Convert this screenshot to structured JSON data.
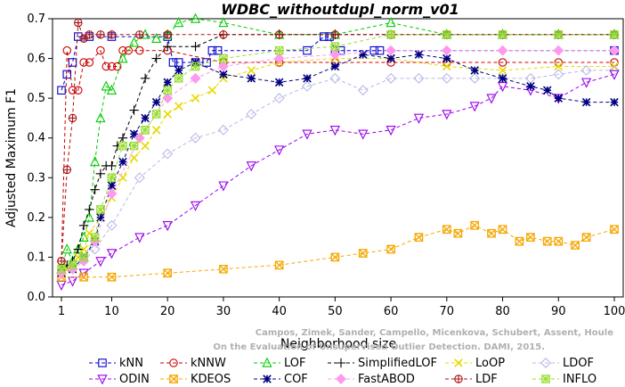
{
  "chart_data": {
    "type": "line",
    "title": "WDBC_withoutdupl_norm_v01",
    "xlabel": "Neighborhood size",
    "ylabel": "Adjusted Maximum F1",
    "xlim": [
      0,
      100
    ],
    "ylim": [
      0,
      0.7
    ],
    "xticks": [
      "1",
      "10",
      "20",
      "30",
      "40",
      "50",
      "60",
      "70",
      "80",
      "90",
      "100"
    ],
    "yticks": [
      "0.0",
      "0.1",
      "0.2",
      "0.3",
      "0.4",
      "0.5",
      "0.6",
      "0.7"
    ],
    "grid": false,
    "legend_position": "bottom",
    "watermark": "Campos, Zimek, Sander, Campello, Micenkova, Schubert, Assent, Houle\nOn the Evaluation of Unsupervised Outlier Detection. DAMI, 2015.",
    "series": [
      {
        "name": "kNN",
        "color": "#0000cc",
        "marker": "square",
        "x": [
          1,
          2,
          3,
          4,
          6,
          10,
          20,
          21,
          22,
          25,
          27,
          28,
          29,
          45,
          48,
          49,
          50,
          51,
          57,
          58,
          100
        ],
        "y": [
          0.52,
          0.56,
          0.59,
          0.655,
          0.655,
          0.655,
          0.655,
          0.59,
          0.59,
          0.59,
          0.59,
          0.62,
          0.62,
          0.62,
          0.655,
          0.655,
          0.62,
          0.62,
          0.62,
          0.62,
          0.62
        ]
      },
      {
        "name": "kNNW",
        "color": "#cc0000",
        "marker": "circle",
        "x": [
          1,
          2,
          3,
          4,
          5,
          6,
          8,
          9,
          10,
          11,
          12,
          13,
          15,
          20,
          30,
          40,
          50,
          60,
          70,
          80,
          90,
          100
        ],
        "y": [
          0.09,
          0.62,
          0.52,
          0.52,
          0.59,
          0.59,
          0.62,
          0.58,
          0.58,
          0.58,
          0.62,
          0.62,
          0.62,
          0.62,
          0.59,
          0.59,
          0.59,
          0.59,
          0.59,
          0.59,
          0.59,
          0.59
        ]
      },
      {
        "name": "LOF",
        "color": "#00cc00",
        "marker": "triangle-up",
        "x": [
          1,
          2,
          3,
          4,
          5,
          6,
          7,
          8,
          9,
          10,
          12,
          14,
          16,
          18,
          20,
          22,
          25,
          30,
          40,
          50,
          60,
          70,
          80,
          90,
          100
        ],
        "y": [
          0.07,
          0.12,
          0.09,
          0.12,
          0.15,
          0.2,
          0.34,
          0.45,
          0.53,
          0.52,
          0.6,
          0.64,
          0.66,
          0.65,
          0.66,
          0.69,
          0.7,
          0.69,
          0.66,
          0.66,
          0.69,
          0.66,
          0.66,
          0.66,
          0.66
        ]
      },
      {
        "name": "SimplifiedLOF",
        "color": "#000000",
        "marker": "plus",
        "x": [
          1,
          2,
          3,
          4,
          5,
          6,
          7,
          8,
          9,
          10,
          11,
          12,
          14,
          16,
          18,
          20,
          25,
          30,
          40,
          50,
          60,
          70,
          80,
          90,
          100
        ],
        "y": [
          0.06,
          0.08,
          0.09,
          0.12,
          0.18,
          0.22,
          0.27,
          0.31,
          0.33,
          0.33,
          0.38,
          0.4,
          0.47,
          0.55,
          0.6,
          0.63,
          0.63,
          0.66,
          0.66,
          0.66,
          0.66,
          0.66,
          0.66,
          0.66,
          0.66
        ]
      },
      {
        "name": "LoOP",
        "color": "#e8d800",
        "marker": "x",
        "x": [
          1,
          2,
          3,
          4,
          5,
          6,
          8,
          10,
          12,
          14,
          16,
          18,
          20,
          22,
          25,
          28,
          30,
          35,
          40,
          50,
          60,
          70,
          80,
          90,
          100
        ],
        "y": [
          0.06,
          0.07,
          0.08,
          0.1,
          0.12,
          0.16,
          0.2,
          0.25,
          0.3,
          0.35,
          0.38,
          0.42,
          0.46,
          0.48,
          0.5,
          0.52,
          0.55,
          0.57,
          0.59,
          0.6,
          0.6,
          0.58,
          0.57,
          0.58,
          0.58
        ]
      },
      {
        "name": "LDOF",
        "color": "#b8b8e8",
        "marker": "diamond",
        "x": [
          1,
          3,
          5,
          7,
          10,
          15,
          20,
          25,
          30,
          35,
          40,
          45,
          50,
          55,
          60,
          65,
          70,
          75,
          80,
          85,
          90,
          95,
          100
        ],
        "y": [
          0.06,
          0.07,
          0.09,
          0.12,
          0.18,
          0.3,
          0.36,
          0.4,
          0.42,
          0.46,
          0.5,
          0.53,
          0.55,
          0.52,
          0.55,
          0.55,
          0.55,
          0.55,
          0.55,
          0.55,
          0.56,
          0.57,
          0.57
        ]
      },
      {
        "name": "ODIN",
        "color": "#9900ee",
        "marker": "triangle-down",
        "x": [
          1,
          3,
          5,
          8,
          10,
          15,
          20,
          25,
          30,
          35,
          40,
          45,
          50,
          55,
          60,
          65,
          70,
          75,
          78,
          80,
          85,
          90,
          95,
          100
        ],
        "y": [
          0.03,
          0.04,
          0.06,
          0.09,
          0.11,
          0.15,
          0.18,
          0.23,
          0.28,
          0.33,
          0.37,
          0.41,
          0.42,
          0.41,
          0.42,
          0.45,
          0.46,
          0.48,
          0.5,
          0.53,
          0.52,
          0.5,
          0.54,
          0.56
        ]
      },
      {
        "name": "KDEOS",
        "color": "#f5a800",
        "marker": "square-x",
        "x": [
          1,
          5,
          10,
          20,
          30,
          40,
          50,
          55,
          60,
          65,
          70,
          72,
          75,
          78,
          80,
          83,
          85,
          88,
          90,
          93,
          95,
          100
        ],
        "y": [
          0.05,
          0.05,
          0.05,
          0.06,
          0.07,
          0.08,
          0.1,
          0.11,
          0.12,
          0.15,
          0.17,
          0.16,
          0.18,
          0.16,
          0.17,
          0.14,
          0.15,
          0.14,
          0.14,
          0.13,
          0.15,
          0.17
        ]
      },
      {
        "name": "COF",
        "color": "#000080",
        "marker": "star",
        "x": [
          1,
          3,
          5,
          7,
          8,
          10,
          12,
          14,
          16,
          18,
          20,
          22,
          25,
          30,
          35,
          40,
          45,
          50,
          55,
          60,
          65,
          70,
          75,
          80,
          85,
          88,
          90,
          95,
          100
        ],
        "y": [
          0.06,
          0.07,
          0.1,
          0.14,
          0.2,
          0.28,
          0.34,
          0.41,
          0.45,
          0.49,
          0.54,
          0.57,
          0.59,
          0.56,
          0.55,
          0.54,
          0.55,
          0.58,
          0.61,
          0.6,
          0.61,
          0.6,
          0.57,
          0.55,
          0.53,
          0.52,
          0.5,
          0.49,
          0.49
        ]
      },
      {
        "name": "FastABOD",
        "color": "#ff99ee",
        "marker": "diamond-filled",
        "x": [
          1,
          3,
          5,
          7,
          10,
          15,
          20,
          25,
          30,
          40,
          50,
          60,
          70,
          80,
          90,
          100
        ],
        "y": [
          0.06,
          0.07,
          0.09,
          0.14,
          0.26,
          0.4,
          0.5,
          0.55,
          0.58,
          0.6,
          0.61,
          0.62,
          0.62,
          0.62,
          0.62,
          0.62
        ]
      },
      {
        "name": "LDF",
        "color": "#aa1111",
        "marker": "circle-plus",
        "x": [
          1,
          2,
          3,
          4,
          5,
          6,
          8,
          10,
          15,
          20,
          30,
          40,
          50,
          60,
          70,
          80,
          90,
          100
        ],
        "y": [
          0.09,
          0.32,
          0.45,
          0.69,
          0.65,
          0.66,
          0.66,
          0.66,
          0.66,
          0.66,
          0.66,
          0.66,
          0.66,
          0.66,
          0.66,
          0.66,
          0.66,
          0.66
        ]
      },
      {
        "name": "INFLO",
        "color": "#99dd33",
        "marker": "square-star",
        "x": [
          1,
          3,
          5,
          7,
          8,
          10,
          12,
          14,
          16,
          18,
          20,
          22,
          25,
          30,
          40,
          50,
          60,
          70,
          80,
          90,
          100
        ],
        "y": [
          0.07,
          0.08,
          0.1,
          0.15,
          0.22,
          0.3,
          0.38,
          0.38,
          0.42,
          0.46,
          0.52,
          0.55,
          0.58,
          0.6,
          0.62,
          0.63,
          0.66,
          0.66,
          0.66,
          0.66,
          0.66
        ]
      }
    ]
  }
}
